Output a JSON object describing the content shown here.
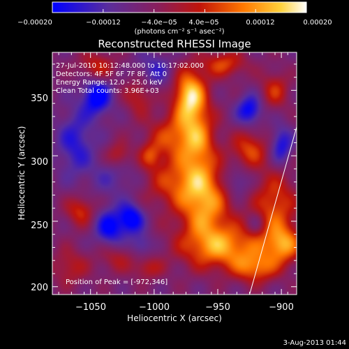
{
  "chart_data": {
    "type": "heatmap",
    "title": "Reconstructed RHESSI Image",
    "xlabel": "Heliocentric X (arcsec)",
    "ylabel": "Heliocentric Y (arcsec)",
    "xlim": [
      -1080,
      -888
    ],
    "ylim": [
      194,
      379
    ],
    "x_ticks": [
      -1050,
      -1000,
      -950,
      -900
    ],
    "y_ticks": [
      200,
      250,
      300,
      350
    ],
    "x_tick_labels": [
      "−1050",
      "−1000",
      "−950",
      "−900"
    ],
    "y_tick_labels": [
      "200",
      "250",
      "300",
      "350"
    ],
    "colorbar": {
      "range": [
        -0.0002,
        0.0002
      ],
      "tick_values": [
        -0.0002,
        -0.00012,
        -4e-05,
        4e-05,
        0.00012,
        0.0002
      ],
      "tick_labels": [
        "−0.00020",
        "−0.00012",
        "−4.0e−05",
        "4.0e−05",
        "0.00012",
        "0.00020"
      ],
      "units_label": "(photons cm⁻² s⁻¹ asec⁻²)",
      "colors": [
        "#0000ff",
        "#5a2d9c",
        "#8a1e5a",
        "#c0140a",
        "#ff7800",
        "#ffd23c",
        "#ffffff"
      ]
    },
    "annotations": [
      "27-Jul-2010 10:12:48.000 to 10:17:02.000",
      "Detectors: 4F 5F 6F 7F 8F, Att 0",
      "Energy Range: 12.0 - 25.0 keV",
      "Clean     Total counts: 3.96E+03"
    ],
    "peak_label": "Position of Peak = [-972,346]",
    "peak": [
      -972,
      346
    ],
    "limb_line": [
      [
        -925,
        194
      ],
      [
        -888,
        322
      ]
    ],
    "blobs": [
      {
        "x": -972,
        "y": 346,
        "sx": 9,
        "sy": 14,
        "v": 0.00022
      },
      {
        "x": -985,
        "y": 315,
        "sx": 14,
        "sy": 12,
        "v": 0.00012
      },
      {
        "x": -965,
        "y": 310,
        "sx": 10,
        "sy": 20,
        "v": 0.00014
      },
      {
        "x": -980,
        "y": 280,
        "sx": 20,
        "sy": 14,
        "v": 0.00012
      },
      {
        "x": -960,
        "y": 260,
        "sx": 14,
        "sy": 18,
        "v": 0.00016
      },
      {
        "x": -945,
        "y": 230,
        "sx": 24,
        "sy": 12,
        "v": 0.00017
      },
      {
        "x": -920,
        "y": 214,
        "sx": 12,
        "sy": 8,
        "v": 0.00013
      },
      {
        "x": -905,
        "y": 262,
        "sx": 12,
        "sy": 18,
        "v": 0.00013
      },
      {
        "x": -898,
        "y": 232,
        "sx": 10,
        "sy": 10,
        "v": 0.00015
      },
      {
        "x": -925,
        "y": 305,
        "sx": 10,
        "sy": 10,
        "v": 0.00012
      },
      {
        "x": -905,
        "y": 350,
        "sx": 8,
        "sy": 10,
        "v": 0.0001
      },
      {
        "x": -945,
        "y": 370,
        "sx": 12,
        "sy": 7,
        "v": 0.00012
      },
      {
        "x": -1028,
        "y": 300,
        "sx": 7,
        "sy": 7,
        "v": 0.0001
      },
      {
        "x": -1003,
        "y": 300,
        "sx": 6,
        "sy": 7,
        "v": 9e-05
      },
      {
        "x": -1058,
        "y": 258,
        "sx": 8,
        "sy": 8,
        "v": 0.00011
      },
      {
        "x": -1045,
        "y": 368,
        "sx": 10,
        "sy": 8,
        "v": 0.0001
      },
      {
        "x": -1012,
        "y": 346,
        "sx": 8,
        "sy": 10,
        "v": 9e-05
      },
      {
        "x": -1066,
        "y": 215,
        "sx": 10,
        "sy": 10,
        "v": 8e-05
      },
      {
        "x": -1030,
        "y": 222,
        "sx": 10,
        "sy": 8,
        "v": 7e-05
      },
      {
        "x": -1005,
        "y": 214,
        "sx": 8,
        "sy": 6,
        "v": 8e-05
      },
      {
        "x": -1045,
        "y": 345,
        "sx": 8,
        "sy": 10,
        "v": -0.00016
      },
      {
        "x": -1062,
        "y": 310,
        "sx": 10,
        "sy": 18,
        "v": -0.0001
      },
      {
        "x": -1035,
        "y": 245,
        "sx": 8,
        "sy": 10,
        "v": -0.00014
      },
      {
        "x": -1018,
        "y": 252,
        "sx": 7,
        "sy": 8,
        "v": -0.00016
      },
      {
        "x": -1030,
        "y": 285,
        "sx": 14,
        "sy": 12,
        "v": -6e-05
      },
      {
        "x": -1000,
        "y": 365,
        "sx": 10,
        "sy": 10,
        "v": -8e-05
      },
      {
        "x": -925,
        "y": 335,
        "sx": 7,
        "sy": 8,
        "v": -0.00014
      },
      {
        "x": -900,
        "y": 308,
        "sx": 6,
        "sy": 10,
        "v": -0.00012
      },
      {
        "x": -1010,
        "y": 232,
        "sx": 6,
        "sy": 6,
        "v": -8e-05
      },
      {
        "x": -935,
        "y": 280,
        "sx": 7,
        "sy": 8,
        "v": -8e-05
      },
      {
        "x": -920,
        "y": 248,
        "sx": 5,
        "sy": 6,
        "v": -6e-05
      }
    ],
    "background_level": -6e-05,
    "date_stamp": "3-Aug-2013 01:44"
  }
}
